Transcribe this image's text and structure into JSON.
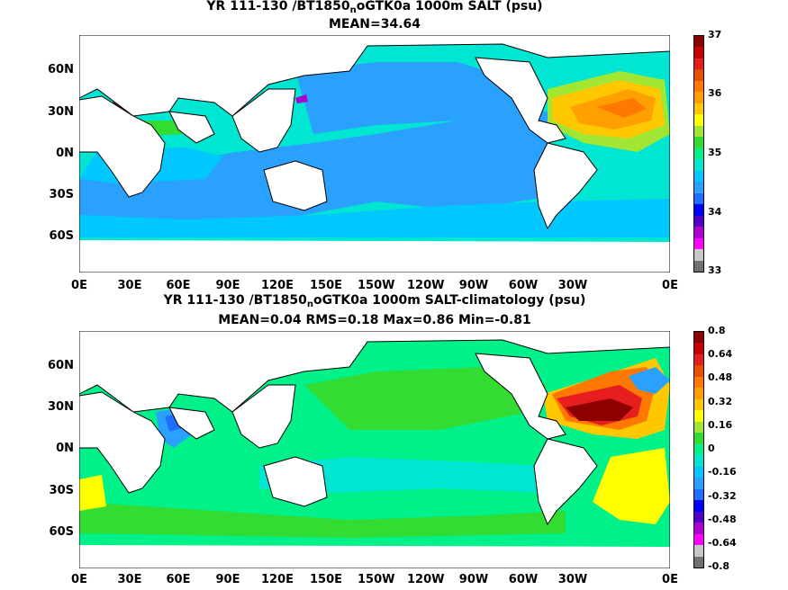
{
  "chart_data": [
    {
      "type": "heatmap",
      "title_parts": [
        "YR 111-130 /BT1850",
        "n",
        "oGTK0a 1000m SALT (psu)"
      ],
      "subtitle": "MEAN=34.64",
      "x_ticks": [
        "0E",
        "30E",
        "60E",
        "90E",
        "120E",
        "150E",
        "150W",
        "120W",
        "90W",
        "60W",
        "30W",
        "0E"
      ],
      "y_ticks": [
        "60N",
        "30N",
        "0N",
        "30S",
        "60S"
      ],
      "y_tick_values": [
        60,
        30,
        0,
        -30,
        -60
      ],
      "ylim": [
        -80,
        85
      ],
      "colorbar": {
        "labels": [
          "37",
          "36",
          "35",
          "34",
          "33"
        ],
        "label_values": [
          37,
          36,
          35,
          34,
          33
        ],
        "range": [
          33,
          37
        ],
        "colors": [
          "#707070",
          "#c8c8c8",
          "#ff00ff",
          "#b000d0",
          "#5000c8",
          "#0000ff",
          "#1e6eff",
          "#2aa0ff",
          "#00c8ff",
          "#00e6d2",
          "#00f08a",
          "#32dc32",
          "#a0e632",
          "#ffff00",
          "#ffc800",
          "#ffa000",
          "#ff7800",
          "#e65000",
          "#e61e1e",
          "#c80000",
          "#8c0000"
        ]
      }
    },
    {
      "type": "heatmap",
      "title_parts": [
        "YR 111-130 /BT1850",
        "n",
        "oGTK0a 1000m SALT-climatology (psu)"
      ],
      "subtitle": "MEAN=0.04   RMS=0.18   Max=0.86   Min=-0.81",
      "x_ticks": [
        "0E",
        "30E",
        "60E",
        "90E",
        "120E",
        "150E",
        "150W",
        "120W",
        "90W",
        "60W",
        "30W",
        "0E"
      ],
      "y_ticks": [
        "60N",
        "30N",
        "0N",
        "30S",
        "60S"
      ],
      "y_tick_values": [
        60,
        30,
        0,
        -30,
        -60
      ],
      "ylim": [
        -80,
        85
      ],
      "colorbar": {
        "labels": [
          "0.8",
          "0.64",
          "0.48",
          "0.32",
          "0.16",
          "0",
          "-0.16",
          "-0.32",
          "-0.48",
          "-0.64",
          "-0.8"
        ],
        "label_values": [
          0.8,
          0.64,
          0.48,
          0.32,
          0.16,
          0,
          -0.16,
          -0.32,
          -0.48,
          -0.64,
          -0.8
        ],
        "range": [
          -0.8,
          0.8
        ],
        "colors": [
          "#707070",
          "#c8c8c8",
          "#ff00ff",
          "#b000d0",
          "#5000c8",
          "#0000ff",
          "#1e6eff",
          "#2aa0ff",
          "#00c8ff",
          "#00e6d2",
          "#00f08a",
          "#32dc32",
          "#a0e632",
          "#ffff00",
          "#ffc800",
          "#ffa000",
          "#ff7800",
          "#e65000",
          "#e61e1e",
          "#c80000",
          "#8c0000"
        ]
      }
    }
  ]
}
